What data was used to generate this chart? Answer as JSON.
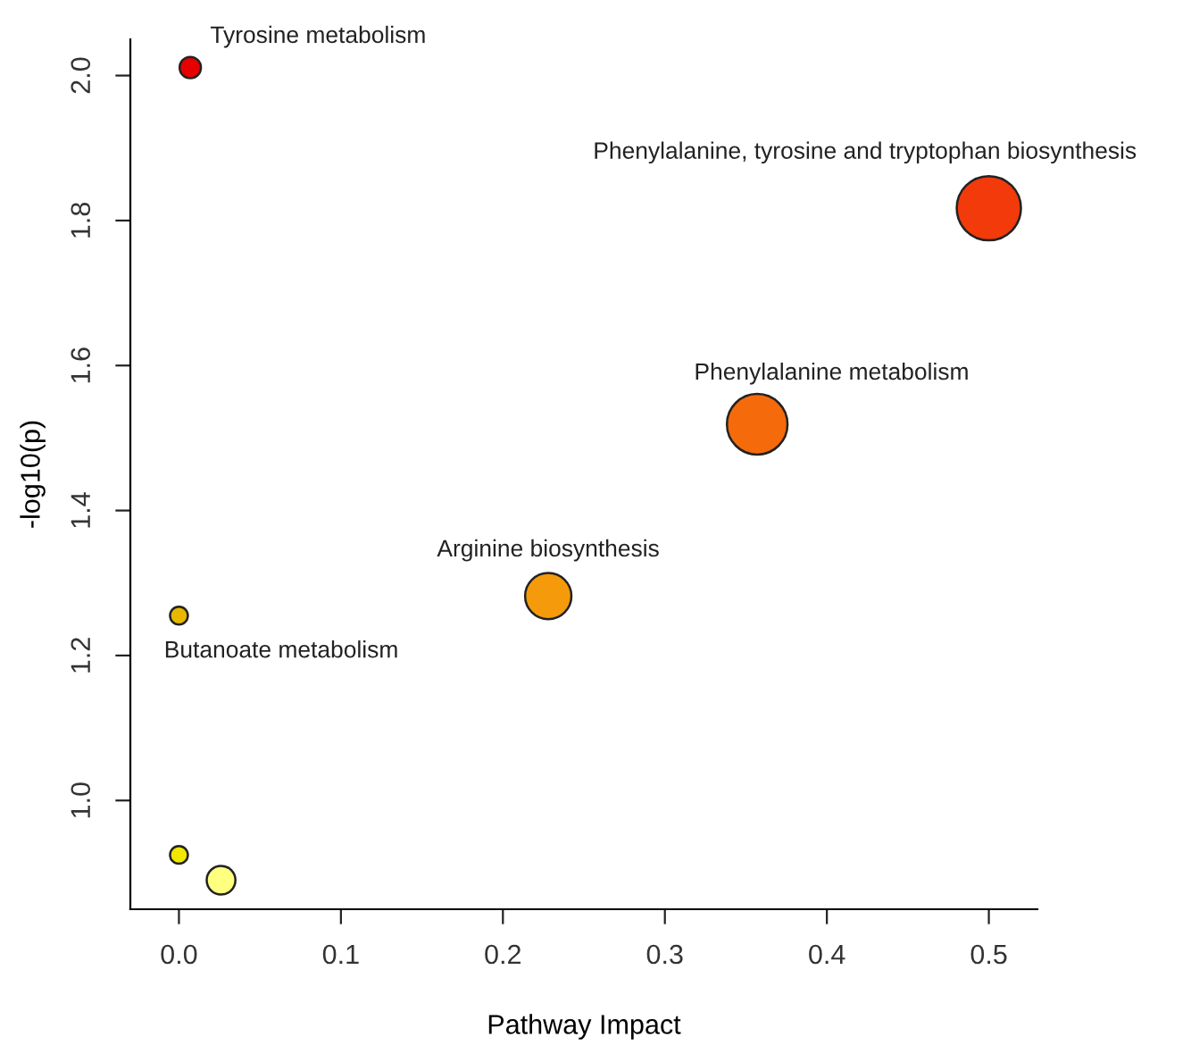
{
  "chart_data": {
    "type": "bubble",
    "xlabel": "Pathway Impact",
    "ylabel": "-log10(p)",
    "x": [
      0.007,
      0.5,
      0.357,
      0.228,
      0.0,
      0.0,
      0.026
    ],
    "values": [
      2.011,
      1.817,
      1.519,
      1.282,
      1.255,
      0.925,
      0.89
    ],
    "sizes": [
      0.11,
      1,
      0.89,
      0.52,
      0.077,
      0.077,
      0.2
    ],
    "colors": [
      "#e60000",
      "#f23a0b",
      "#f56a0a",
      "#f59a0a",
      "#e8b800",
      "#f0e800",
      "#ffff80"
    ],
    "xlim": [
      -0.03,
      0.53
    ],
    "ylim": [
      0.85,
      2.05
    ],
    "xticks": [
      {
        "value": 0.0,
        "label": "0.0"
      },
      0.1,
      0.2,
      0.3,
      0.4,
      0.5
    ],
    "yticks": [
      {
        "value": 1.0,
        "label": "1.0"
      },
      1.2,
      1.4,
      1.6,
      1.8,
      {
        "value": 2.0,
        "label": "2.0"
      }
    ],
    "grid": false,
    "marker": "circle",
    "annotations": [
      {
        "text": "Tyrosine metabolism",
        "x": 0.007,
        "y": 2.011
      },
      {
        "text": "Phenylalanine, tyrosine and tryptophan biosynthesis",
        "x": 0.5,
        "y": 1.817
      },
      {
        "text": "Phenylalanine metabolism",
        "x": 0.357,
        "y": 1.519
      },
      {
        "text": "Arginine biosynthesis",
        "x": 0.228,
        "y": 1.282
      },
      {
        "text": "Butanoate metabolism",
        "x": 0.0,
        "y": 1.255
      }
    ]
  }
}
